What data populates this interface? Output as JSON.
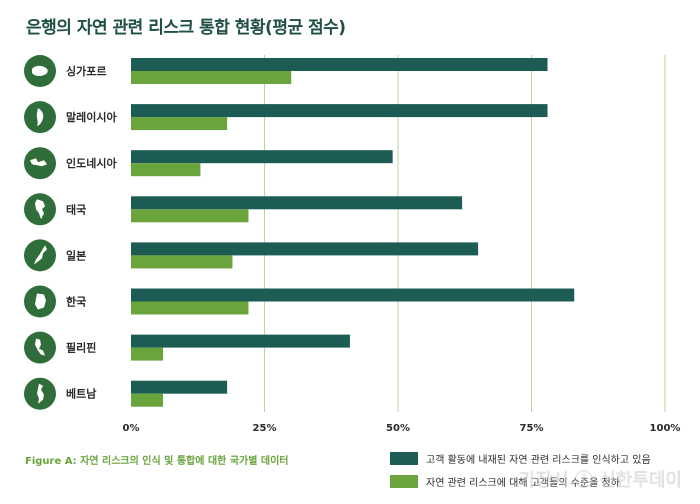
{
  "chart_data": {
    "type": "bar",
    "orientation": "horizontal",
    "title": "은행의 자연 관련 리스크 통합 현황(평균 점수)",
    "caption": "Figure A: 자연 리스크의 인식 및 통합에 대한 국가별 데이터",
    "categories": [
      "싱가포르",
      "말레이시아",
      "인도네시아",
      "태국",
      "일본",
      "한국",
      "필리핀",
      "베트남"
    ],
    "series": [
      {
        "name": "고객 활동에 내재된 자연 관련 리스크를 인식하고 있음",
        "color": "#1d5c54",
        "values": [
          78,
          78,
          49,
          62,
          65,
          83,
          41,
          18
        ]
      },
      {
        "name": "자연 관련 리스크에 대해 고객들의 수준을 정하",
        "color": "#6aa43c",
        "values": [
          30,
          18,
          13,
          22,
          19,
          22,
          6,
          6
        ]
      }
    ],
    "xlim": [
      0,
      100
    ],
    "xticks": [
      "0%",
      "25%",
      "50%",
      "75%",
      "100%"
    ],
    "grid": "vertical",
    "legend": "bottom-right",
    "country_icons": [
      "singapore-map-icon",
      "malaysia-map-icon",
      "indonesia-map-icon",
      "thailand-map-icon",
      "japan-map-icon",
      "korea-map-icon",
      "philippines-map-icon",
      "vietnam-map-icon"
    ],
    "icon_color": "#2f6e3a"
  },
  "watermark": "가장시 ⓘ 신한투데이"
}
